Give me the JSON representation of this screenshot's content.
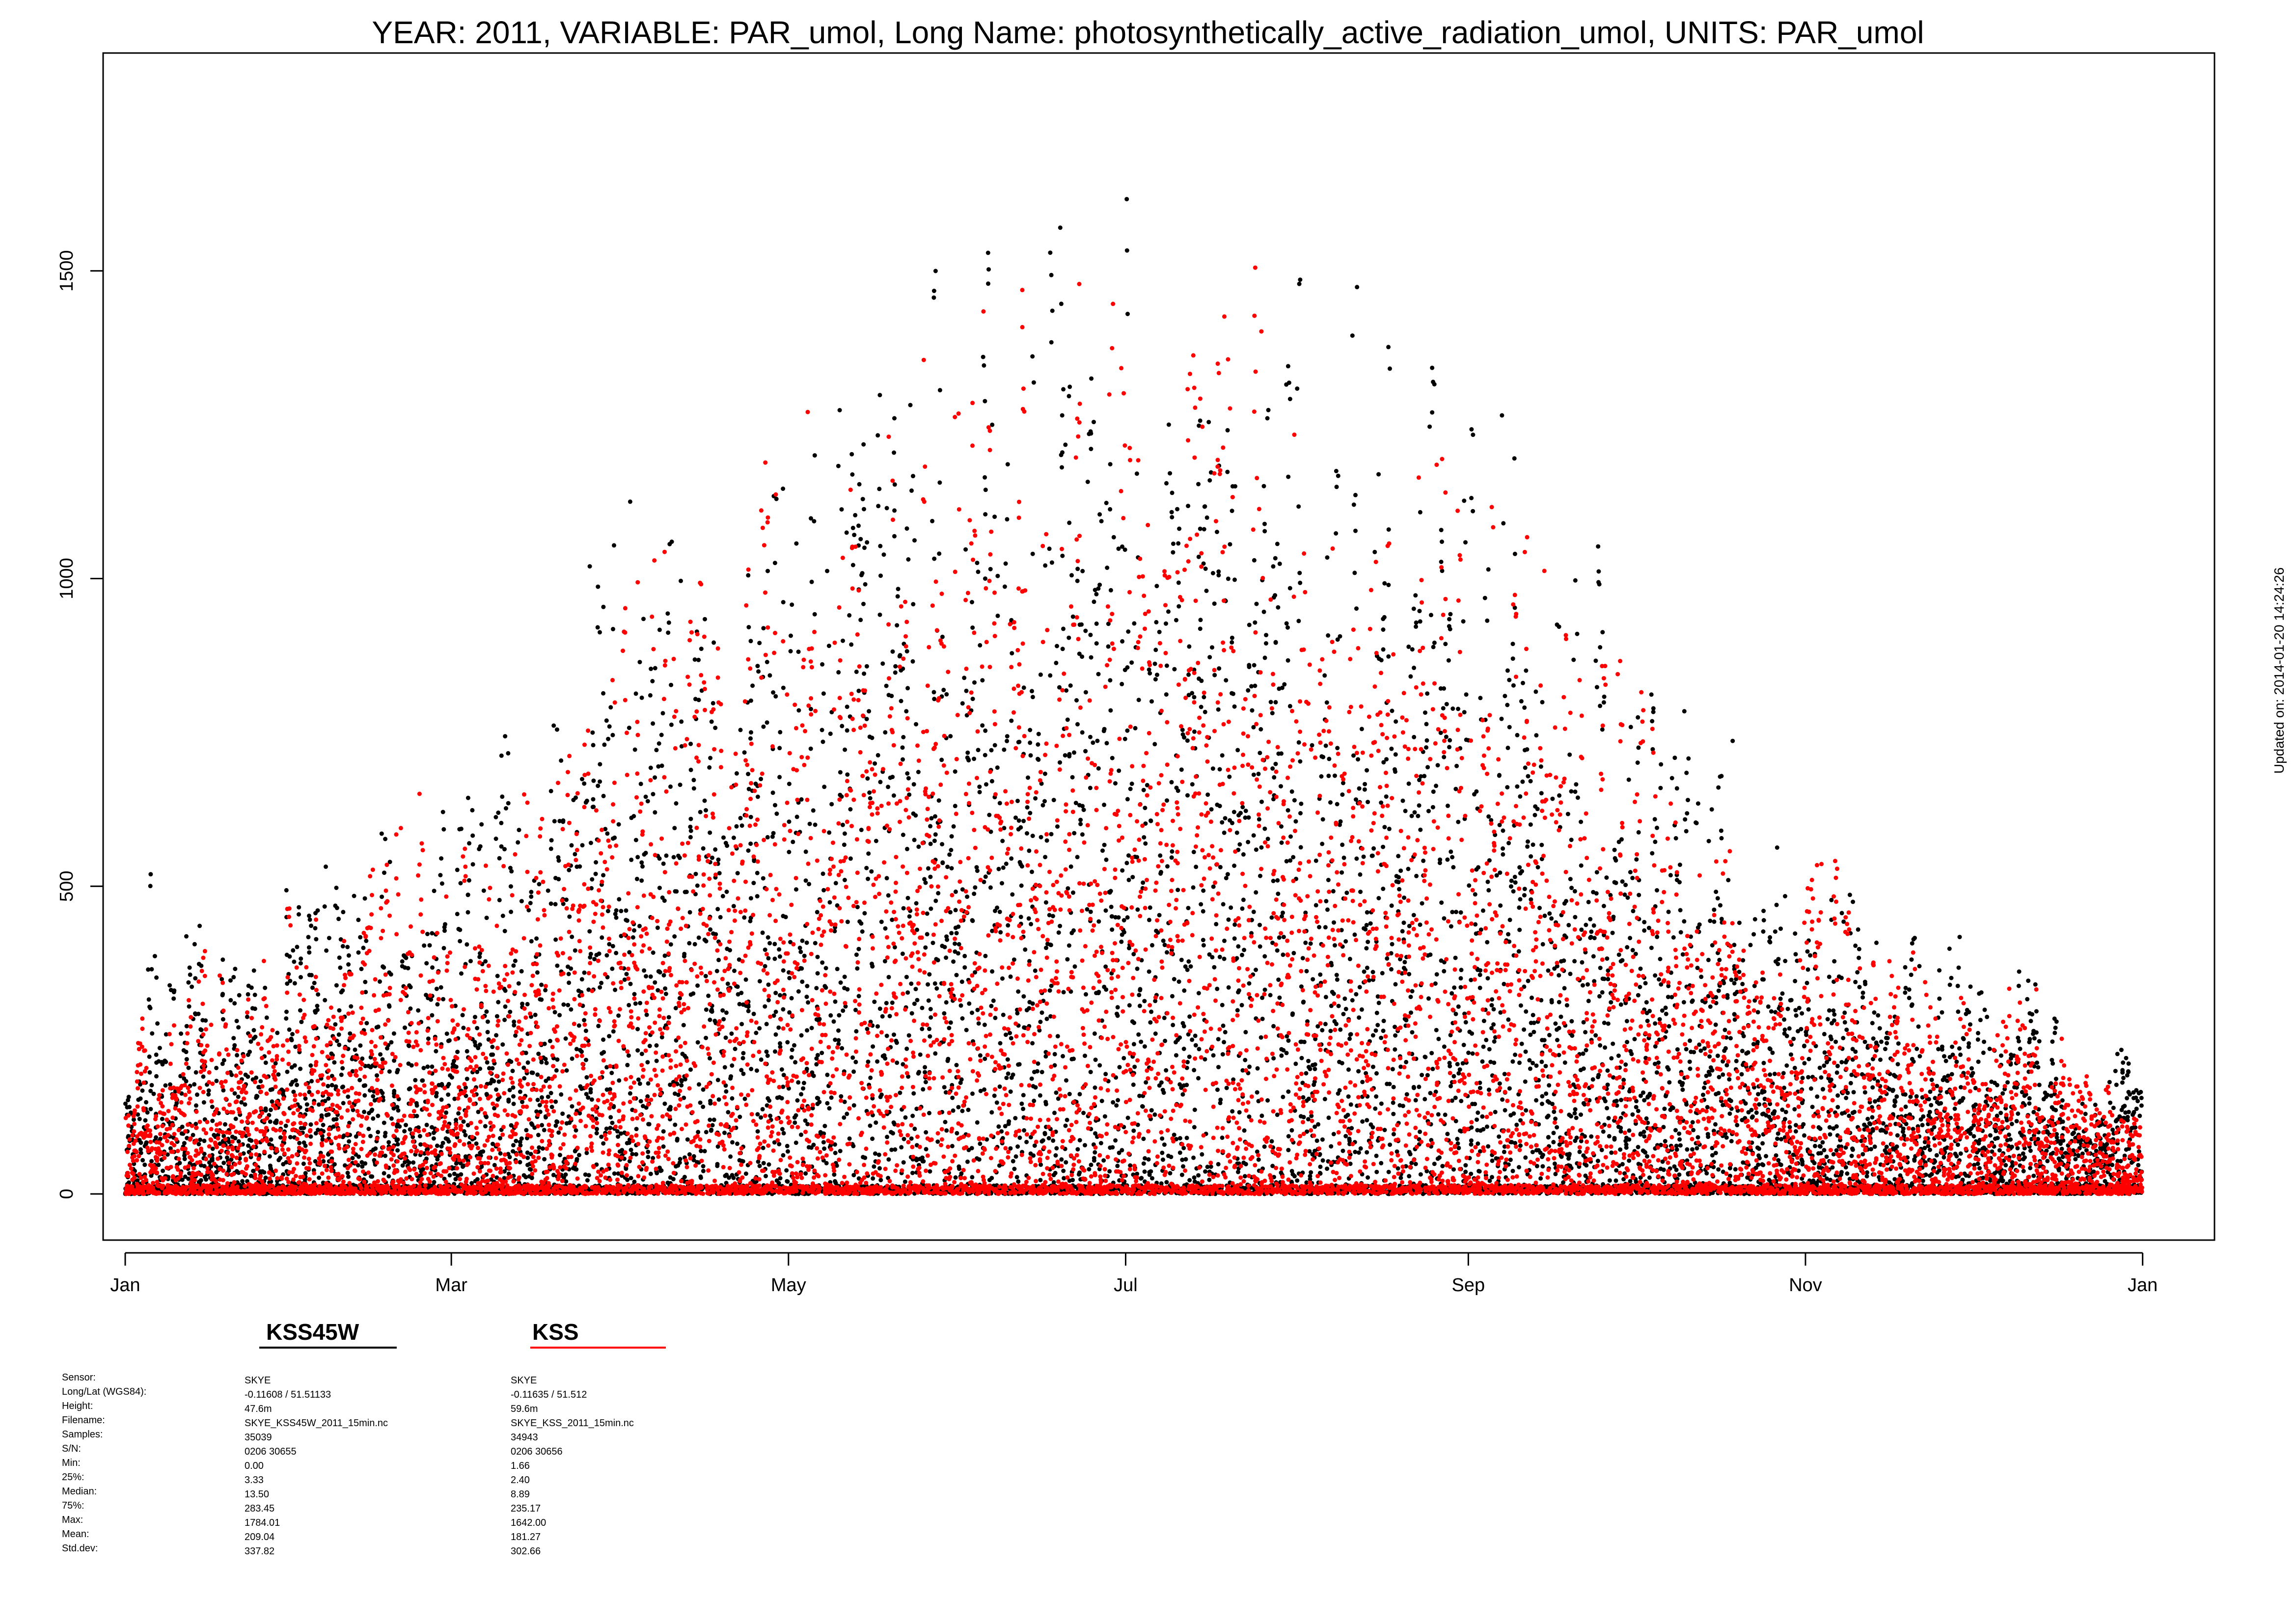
{
  "chart_data": {
    "type": "scatter",
    "title": "YEAR: 2011, VARIABLE: PAR_umol, Long Name: photosynthetically_active_radiation_umol, UNITS: PAR_umol",
    "xlabel": "",
    "ylabel": "",
    "x_ticks": [
      "Jan",
      "Mar",
      "May",
      "Jul",
      "Sep",
      "Nov",
      "Jan"
    ],
    "x_tick_days": [
      1,
      60,
      121,
      182,
      244,
      305,
      366
    ],
    "y_ticks": [
      0,
      500,
      1000,
      1500
    ],
    "xlim_days": [
      -3,
      379
    ],
    "ylim": [
      -75,
      1854
    ],
    "grid": false,
    "series": [
      {
        "name": "KSS45W",
        "color": "#000000",
        "daily_envelope_points": [
          [
            1,
            190
          ],
          [
            4,
            300
          ],
          [
            5,
            560
          ],
          [
            6,
            590
          ],
          [
            10,
            510
          ],
          [
            18,
            460
          ],
          [
            30,
            520
          ],
          [
            45,
            610
          ],
          [
            55,
            650
          ],
          [
            62,
            660
          ],
          [
            70,
            820
          ],
          [
            78,
            950
          ],
          [
            88,
            1170
          ],
          [
            95,
            1150
          ],
          [
            105,
            1300
          ],
          [
            110,
            1210
          ],
          [
            118,
            1250
          ],
          [
            125,
            1300
          ],
          [
            135,
            1400
          ],
          [
            140,
            1470
          ],
          [
            148,
            1640
          ],
          [
            152,
            1720
          ],
          [
            160,
            1600
          ],
          [
            170,
            1650
          ],
          [
            178,
            1630
          ],
          [
            182,
            1780
          ],
          [
            185,
            1700
          ],
          [
            195,
            1550
          ],
          [
            205,
            1640
          ],
          [
            210,
            1560
          ],
          [
            220,
            1480
          ],
          [
            230,
            1510
          ],
          [
            240,
            1480
          ],
          [
            244,
            1360
          ],
          [
            255,
            1350
          ],
          [
            265,
            1200
          ],
          [
            270,
            1020
          ],
          [
            278,
            880
          ],
          [
            285,
            800
          ],
          [
            292,
            820
          ],
          [
            300,
            600
          ],
          [
            308,
            520
          ],
          [
            315,
            510
          ],
          [
            325,
            470
          ],
          [
            335,
            430
          ],
          [
            345,
            410
          ],
          [
            352,
            300
          ],
          [
            365,
            250
          ]
        ]
      },
      {
        "name": "KSS",
        "color": "#ff0000",
        "daily_envelope_points": [
          [
            1,
            160
          ],
          [
            5,
            370
          ],
          [
            10,
            390
          ],
          [
            18,
            470
          ],
          [
            30,
            520
          ],
          [
            45,
            600
          ],
          [
            55,
            690
          ],
          [
            62,
            700
          ],
          [
            70,
            880
          ],
          [
            78,
            900
          ],
          [
            88,
            1110
          ],
          [
            95,
            1050
          ],
          [
            105,
            1190
          ],
          [
            110,
            1210
          ],
          [
            118,
            1330
          ],
          [
            125,
            1290
          ],
          [
            135,
            1420
          ],
          [
            140,
            1480
          ],
          [
            148,
            1620
          ],
          [
            152,
            1580
          ],
          [
            160,
            1540
          ],
          [
            170,
            1500
          ],
          [
            178,
            1560
          ],
          [
            182,
            1610
          ],
          [
            185,
            1580
          ],
          [
            195,
            1500
          ],
          [
            205,
            1600
          ],
          [
            210,
            1480
          ],
          [
            220,
            1410
          ],
          [
            230,
            1330
          ],
          [
            240,
            1300
          ],
          [
            244,
            1310
          ],
          [
            255,
            1120
          ],
          [
            265,
            1080
          ],
          [
            270,
            990
          ],
          [
            278,
            840
          ],
          [
            285,
            740
          ],
          [
            292,
            660
          ],
          [
            300,
            450
          ],
          [
            308,
            590
          ],
          [
            315,
            450
          ],
          [
            325,
            420
          ],
          [
            335,
            380
          ],
          [
            345,
            360
          ],
          [
            352,
            260
          ],
          [
            365,
            200
          ]
        ]
      }
    ]
  },
  "legend": {
    "series": [
      {
        "name": "KSS45W",
        "color": "#000000"
      },
      {
        "name": "KSS",
        "color": "#ff0000"
      }
    ]
  },
  "stats": {
    "labels": [
      "Sensor:",
      "Long/Lat (WGS84):",
      "Height:",
      "Filename:",
      "Samples:",
      "S/N:",
      "Min:",
      "25%:",
      "Median:",
      "75%:",
      "Max:",
      "Mean:",
      "Std.dev:"
    ],
    "kss45w": [
      "SKYE",
      "-0.11608 / 51.51133",
      "47.6m",
      "SKYE_KSS45W_2011_15min.nc",
      "35039",
      "0206 30655",
      "0.00",
      "3.33",
      "13.50",
      "283.45",
      "1784.01",
      "209.04",
      "337.82"
    ],
    "kss": [
      "SKYE",
      "-0.11635 / 51.512",
      "59.6m",
      "SKYE_KSS_2011_15min.nc",
      "34943",
      "0206 30656",
      "1.66",
      "2.40",
      "8.89",
      "235.17",
      "1642.00",
      "181.27",
      "302.66"
    ]
  },
  "updated": "Updated on: 2014-01-20 14:24:26"
}
